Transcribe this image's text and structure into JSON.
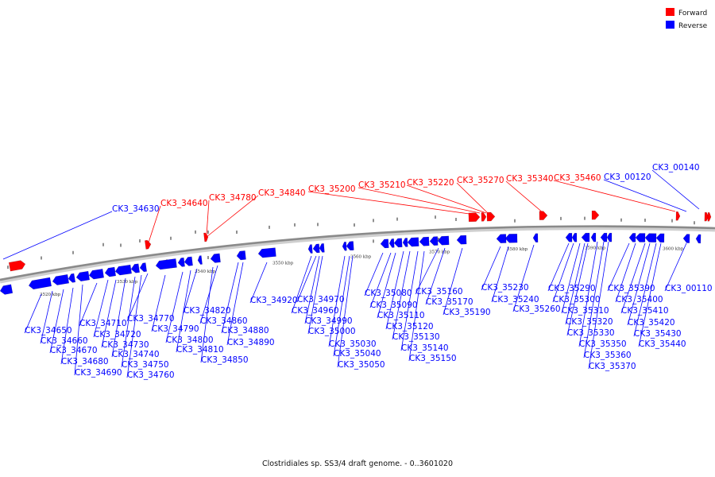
{
  "colors": {
    "forward": "#ff0000",
    "reverse": "#0000ff",
    "axis": "#8a8a8a",
    "tick": "#222222"
  },
  "legend": [
    {
      "key": "forward",
      "label": "Forward"
    },
    {
      "key": "reverse",
      "label": "Reverse"
    }
  ],
  "caption": "Clostridiales sp. SS3/4 draft genome. - 0..3601020",
  "axis_ticks": [
    "3520 kbp",
    "3530 kbp",
    "3540 kbp",
    "3550 kbp",
    "3560 kbp",
    "3570 kbp",
    "3580 kbp",
    "3590 kbp",
    "3600 kbp"
  ],
  "forward_labels": [
    "CK3_34640",
    "CK3_34780",
    "CK3_34840",
    "CK3_35200",
    "CK3_35210",
    "CK3_35220",
    "CK3_35270",
    "CK3_35340",
    "CK3_35460"
  ],
  "reverse_top_labels": [
    "CK3_34630",
    "CK3_00120",
    "CK3_00140"
  ],
  "reverse_bottom_labels": [
    "CK3_34650",
    "CK3_34660",
    "CK3_34670",
    "CK3_34680",
    "CK3_34690",
    "CK3_34710",
    "CK3_34720",
    "CK3_34730",
    "CK3_34740",
    "CK3_34750",
    "CK3_34760",
    "CK3_34770",
    "CK3_34790",
    "CK3_34800",
    "CK3_34810",
    "CK3_34820",
    "CK3_34850",
    "CK3_34860",
    "CK3_34880",
    "CK3_34890",
    "CK3_34920",
    "CK3_34960",
    "CK3_34970",
    "CK3_34990",
    "CK3_35000",
    "CK3_35030",
    "CK3_35040",
    "CK3_35050",
    "CK3_35080",
    "CK3_35090",
    "CK3_35110",
    "CK3_35120",
    "CK3_35130",
    "CK3_35140",
    "CK3_35150",
    "CK3_35160",
    "CK3_35170",
    "CK3_35190",
    "CK3_35230",
    "CK3_35240",
    "CK3_35260",
    "CK3_35290",
    "CK3_35300",
    "CK3_35310",
    "CK3_35320",
    "CK3_35330",
    "CK3_35350",
    "CK3_35360",
    "CK3_35370",
    "CK3_35390",
    "CK3_35400",
    "CK3_35410",
    "CK3_35420",
    "CK3_35430",
    "CK3_35440",
    "CK3_00110"
  ]
}
